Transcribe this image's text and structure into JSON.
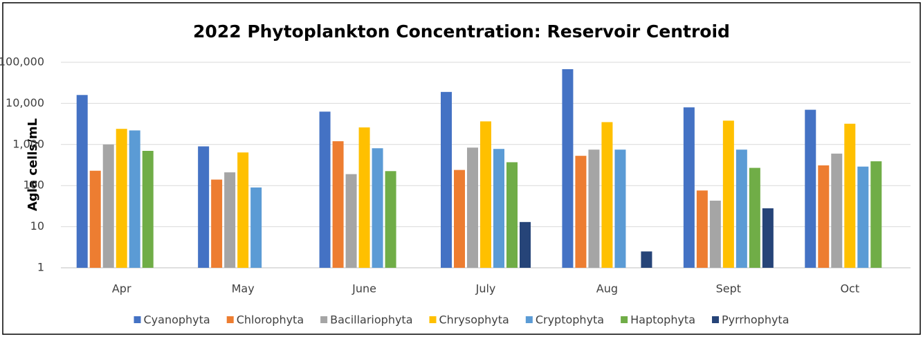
{
  "chart_data": {
    "type": "bar",
    "title": "2022 Phytoplankton Concentration: Reservoir Centroid",
    "y_label": "Agla cells/mL",
    "categories": [
      "Apr",
      "May",
      "June",
      "July",
      "Aug",
      "Sept",
      "Oct"
    ],
    "series": [
      {
        "name": "Cyanophyta",
        "color": "#4472c4",
        "values": [
          16000,
          900,
          6300,
          19000,
          68000,
          8000,
          7000
        ]
      },
      {
        "name": "Chlorophyta",
        "color": "#ed7d31",
        "values": [
          230,
          140,
          1200,
          240,
          530,
          76,
          310
        ]
      },
      {
        "name": "Bacillariophyta",
        "color": "#a5a5a5",
        "values": [
          1000,
          210,
          190,
          840,
          750,
          43,
          600
        ]
      },
      {
        "name": "Chrysophyta",
        "color": "#ffc000",
        "values": [
          2400,
          640,
          2600,
          3650,
          3500,
          3800,
          3200
        ]
      },
      {
        "name": "Cryptophyta",
        "color": "#5b9bd5",
        "values": [
          2200,
          90,
          810,
          780,
          750,
          750,
          290
        ]
      },
      {
        "name": "Haptophyta",
        "color": "#70ad47",
        "values": [
          700,
          null,
          225,
          370,
          null,
          270,
          390
        ]
      },
      {
        "name": "Pyrrhophyta",
        "color": "#264478",
        "values": [
          null,
          null,
          null,
          13,
          2.5,
          28,
          null
        ]
      }
    ],
    "log_scale": true,
    "ylim": [
      1,
      100000
    ],
    "yticks": [
      1,
      10,
      100,
      {
        "value": 1000,
        "label": "1,000"
      },
      {
        "value": 10000,
        "label": "10,000"
      },
      {
        "value": 100000,
        "label": "100,000"
      }
    ],
    "grid": true,
    "legend": "bottom"
  }
}
